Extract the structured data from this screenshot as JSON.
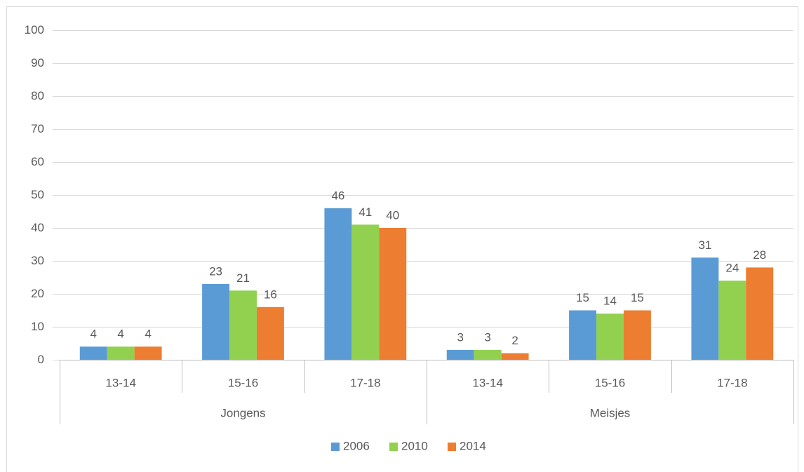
{
  "chart_data": {
    "type": "bar",
    "groups": [
      {
        "name": "Jongens",
        "categories": [
          "13-14",
          "15-16",
          "17-18"
        ]
      },
      {
        "name": "Meisjes",
        "categories": [
          "13-14",
          "15-16",
          "17-18"
        ]
      }
    ],
    "series": [
      {
        "name": "2006",
        "color": "#5b9bd5",
        "values": [
          4,
          23,
          46,
          3,
          15,
          31
        ]
      },
      {
        "name": "2010",
        "color": "#92d050",
        "values": [
          4,
          21,
          41,
          3,
          14,
          24
        ]
      },
      {
        "name": "2014",
        "color": "#ed7d31",
        "values": [
          4,
          16,
          40,
          2,
          15,
          28
        ]
      }
    ],
    "ylim": [
      0,
      100
    ],
    "yticks": [
      0,
      10,
      20,
      30,
      40,
      50,
      60,
      70,
      80,
      90,
      100
    ],
    "grid": true,
    "legend": "bottom"
  }
}
